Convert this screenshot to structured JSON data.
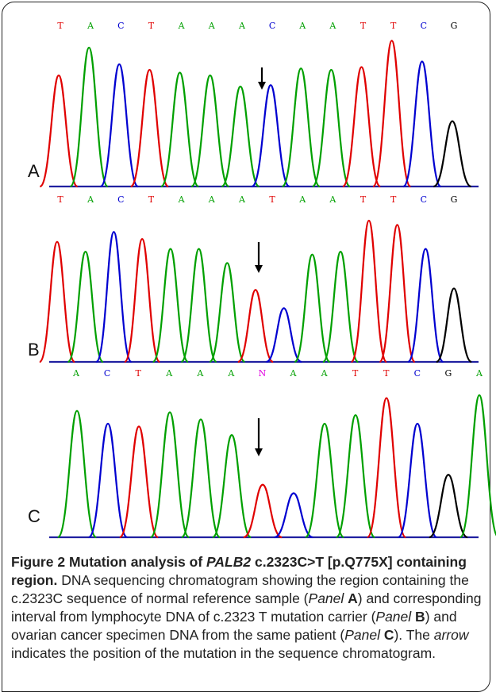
{
  "colors": {
    "A": "#00a000",
    "C": "#0000d0",
    "G": "#000000",
    "T": "#e00000",
    "N": "#e000e0",
    "baseline": "#2020a0"
  },
  "panels": [
    {
      "label": "A",
      "bases": [
        "T",
        "A",
        "C",
        "T",
        "A",
        "A",
        "A",
        "C",
        "A",
        "A",
        "T",
        "T",
        "C",
        "G"
      ],
      "peaks": [
        {
          "base": "T",
          "h": 0.8
        },
        {
          "base": "A",
          "h": 1.0
        },
        {
          "base": "C",
          "h": 0.88
        },
        {
          "base": "T",
          "h": 0.84
        },
        {
          "base": "A",
          "h": 0.82
        },
        {
          "base": "A",
          "h": 0.8
        },
        {
          "base": "A",
          "h": 0.72
        },
        {
          "base": "C",
          "h": 0.73
        },
        {
          "base": "A",
          "h": 0.85
        },
        {
          "base": "A",
          "h": 0.84
        },
        {
          "base": "T",
          "h": 0.86
        },
        {
          "base": "T",
          "h": 1.05
        },
        {
          "base": "C",
          "h": 0.9
        },
        {
          "base": "G",
          "h": 0.47
        }
      ]
    },
    {
      "label": "B",
      "bases": [
        "T",
        "A",
        "C",
        "T",
        "A",
        "A",
        "A",
        "T",
        "A",
        "A",
        "T",
        "T",
        "C",
        "G"
      ],
      "peaks": [
        {
          "base": "T",
          "h": 0.85
        },
        {
          "base": "A",
          "h": 0.78
        },
        {
          "base": "C",
          "h": 0.92
        },
        {
          "base": "T",
          "h": 0.87
        },
        {
          "base": "A",
          "h": 0.8
        },
        {
          "base": "A",
          "h": 0.8
        },
        {
          "base": "A",
          "h": 0.7
        },
        {
          "base": "T",
          "h": 0.51
        },
        {
          "base": "C",
          "h": 0.38
        },
        {
          "base": "A",
          "h": 0.76
        },
        {
          "base": "A",
          "h": 0.78
        },
        {
          "base": "T",
          "h": 1.0
        },
        {
          "base": "T",
          "h": 0.97
        },
        {
          "base": "C",
          "h": 0.8
        },
        {
          "base": "G",
          "h": 0.52
        }
      ]
    },
    {
      "label": "C",
      "bases": [
        "A",
        "C",
        "T",
        "A",
        "A",
        "A",
        "N",
        "A",
        "A",
        "T",
        "T",
        "C",
        "G",
        "A"
      ],
      "peaks": [
        {
          "base": "A",
          "h": 0.89
        },
        {
          "base": "C",
          "h": 0.8
        },
        {
          "base": "T",
          "h": 0.78
        },
        {
          "base": "A",
          "h": 0.88
        },
        {
          "base": "A",
          "h": 0.83
        },
        {
          "base": "A",
          "h": 0.72
        },
        {
          "base": "T",
          "h": 0.37
        },
        {
          "base": "C",
          "h": 0.31
        },
        {
          "base": "A",
          "h": 0.8
        },
        {
          "base": "A",
          "h": 0.86
        },
        {
          "base": "T",
          "h": 0.98
        },
        {
          "base": "C",
          "h": 0.8
        },
        {
          "base": "G",
          "h": 0.44
        },
        {
          "base": "A",
          "h": 1.0
        }
      ]
    }
  ],
  "caption": {
    "figure_label": "Figure 2",
    "title_pre": " Mutation analysis of ",
    "title_gene": "PALB2",
    "title_post": " c.2323C>T [p.Q775X] containing region.",
    "body_1": " DNA sequencing chromatogram showing the region containing the c.2323C sequence of normal reference sample (",
    "panel_word_a": "Panel",
    "panel_a": "A",
    "body_2": ") and corresponding interval from lymphocyte DNA of c.2323 T mutation carrier (",
    "panel_word_b": "Panel",
    "panel_b": "B",
    "body_3": ") and ovarian cancer specimen DNA from the same patient (",
    "panel_word_c": "Panel",
    "panel_c": "C",
    "body_4": "). The ",
    "arrow_word": "arrow",
    "body_5": " indicates the position of the mutation in the sequence chromatogram."
  }
}
